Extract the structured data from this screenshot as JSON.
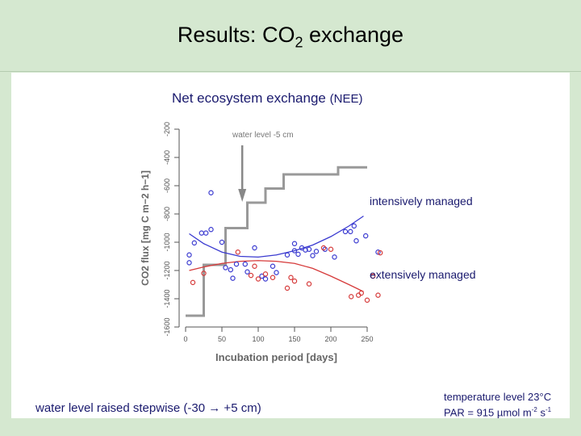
{
  "slide": {
    "title_main": "Results: CO",
    "title_sub": "2",
    "title_rest": " exchange",
    "subtitle_main": "Net ecosystem exchange",
    "subtitle_abbr": "(NEE)",
    "note_left_a": "water level raised stepwise (-30 ",
    "note_left_arrow": "→",
    "note_left_b": " +5 cm)",
    "note_right_line1": "temperature level 23°C",
    "note_right_line2_a": "PAR = 915 µmol m",
    "note_right_sup1": "-2",
    "note_right_line2_b": " s",
    "note_right_sup2": "-1"
  },
  "chart_data": {
    "type": "scatter",
    "xlabel": "Incubation period [days]",
    "ylabel": "CO2 flux [mg C m−2 h−1]",
    "xlim": [
      0,
      250
    ],
    "ylim": [
      -1600,
      -200
    ],
    "x_reverse": false,
    "y_reversed": true,
    "x_ticks": [
      0,
      50,
      100,
      150,
      200,
      250
    ],
    "y_ticks": [
      -200,
      -400,
      -600,
      -800,
      -1000,
      -1200,
      -1400,
      -1600
    ],
    "annotations": {
      "water_level": "water level -5 cm",
      "intensive": "intensively managed",
      "extensive": "extensively managed"
    },
    "colors": {
      "intensive": "#3a3ad0",
      "extensive": "#d63a3a",
      "water_level": "#999999"
    },
    "series": [
      {
        "name": "intensively managed",
        "color": "#3a3ad0",
        "points": [
          [
            5,
            -1090
          ],
          [
            5,
            -1145
          ],
          [
            12,
            -1005
          ],
          [
            22,
            -935
          ],
          [
            28,
            -935
          ],
          [
            35,
            -910
          ],
          [
            35,
            -650
          ],
          [
            50,
            -1000
          ],
          [
            55,
            -1180
          ],
          [
            62,
            -1195
          ],
          [
            65,
            -1255
          ],
          [
            70,
            -1155
          ],
          [
            82,
            -1155
          ],
          [
            85,
            -1210
          ],
          [
            95,
            -1040
          ],
          [
            105,
            -1240
          ],
          [
            110,
            -1260
          ],
          [
            120,
            -1170
          ],
          [
            125,
            -1215
          ],
          [
            140,
            -1090
          ],
          [
            150,
            -1010
          ],
          [
            150,
            -1060
          ],
          [
            155,
            -1085
          ],
          [
            160,
            -1040
          ],
          [
            165,
            -1055
          ],
          [
            170,
            -1050
          ],
          [
            175,
            -1095
          ],
          [
            180,
            -1065
          ],
          [
            192,
            -1050
          ],
          [
            205,
            -1105
          ],
          [
            220,
            -925
          ],
          [
            227,
            -925
          ],
          [
            232,
            -885
          ],
          [
            235,
            -990
          ],
          [
            248,
            -955
          ],
          [
            265,
            -1070
          ]
        ]
      },
      {
        "name": "extensively managed",
        "color": "#d63a3a",
        "points": [
          [
            10,
            -1285
          ],
          [
            25,
            -1220
          ],
          [
            72,
            -1070
          ],
          [
            90,
            -1235
          ],
          [
            95,
            -1170
          ],
          [
            100,
            -1260
          ],
          [
            110,
            -1225
          ],
          [
            120,
            -1250
          ],
          [
            140,
            -1325
          ],
          [
            145,
            -1250
          ],
          [
            150,
            -1275
          ],
          [
            170,
            -1295
          ],
          [
            190,
            -1040
          ],
          [
            200,
            -1050
          ],
          [
            228,
            -1385
          ],
          [
            238,
            -1375
          ],
          [
            242,
            -1360
          ],
          [
            250,
            -1410
          ],
          [
            258,
            -1240
          ],
          [
            265,
            -1375
          ],
          [
            268,
            -1075
          ]
        ]
      }
    ],
    "fit_lines": [
      {
        "series": "intensively managed",
        "color": "#3a3ad0",
        "points": [
          [
            5,
            -940
          ],
          [
            25,
            -1010
          ],
          [
            50,
            -1070
          ],
          [
            75,
            -1100
          ],
          [
            100,
            -1105
          ],
          [
            125,
            -1090
          ],
          [
            150,
            -1060
          ],
          [
            175,
            -1020
          ],
          [
            200,
            -960
          ],
          [
            225,
            -885
          ],
          [
            245,
            -815
          ]
        ]
      },
      {
        "series": "extensively managed",
        "color": "#d63a3a",
        "points": [
          [
            5,
            -1200
          ],
          [
            25,
            -1175
          ],
          [
            50,
            -1150
          ],
          [
            75,
            -1135
          ],
          [
            100,
            -1130
          ],
          [
            125,
            -1135
          ],
          [
            150,
            -1150
          ],
          [
            175,
            -1185
          ],
          [
            200,
            -1240
          ],
          [
            225,
            -1300
          ],
          [
            245,
            -1350
          ]
        ]
      }
    ],
    "water_level_steps": [
      [
        0,
        -1520
      ],
      [
        25,
        -1520
      ],
      [
        25,
        -1160
      ],
      [
        55,
        -1160
      ],
      [
        55,
        -900
      ],
      [
        85,
        -900
      ],
      [
        85,
        -720
      ],
      [
        110,
        -720
      ],
      [
        110,
        -620
      ],
      [
        135,
        -620
      ],
      [
        135,
        -520
      ],
      [
        210,
        -520
      ],
      [
        210,
        -470
      ],
      [
        250,
        -470
      ]
    ]
  }
}
